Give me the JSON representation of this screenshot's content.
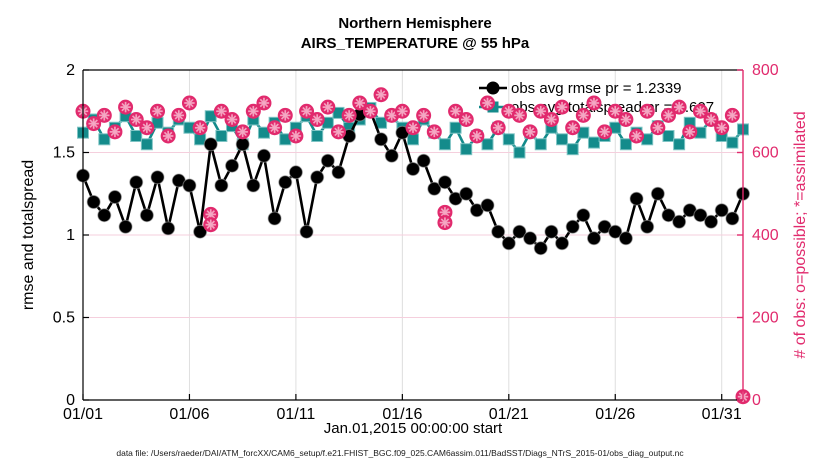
{
  "title": {
    "line1": "Northern Hemisphere",
    "line2": "AIRS_TEMPERATURE @ 55 hPa"
  },
  "footer": "data file: /Users/raeder/DAI/ATM_forcXX/CAM6_setup/f.e21.FHIST_BGC.f09_025.CAM6assim.011/BadSST/Diags_NTrS_2015-01/obs_diag_output.nc",
  "colors": {
    "rmse": "#000000",
    "totalspread": "#148b8b",
    "obs_pink": "#e12a6d",
    "obs_pink_light": "#f4a9c4",
    "grid_horizontal": "#f5cfdd",
    "grid_vertical": "#dedede"
  },
  "chart_data": {
    "type": "line",
    "title": "Northern Hemisphere AIRS_TEMPERATURE @ 55 hPa",
    "xlabel": "Jan.01,2015 00:00:00 start",
    "x_span_days": 31,
    "x_step_days": 0.5,
    "x_ticks": [
      {
        "day": 0,
        "label": "01/01"
      },
      {
        "day": 5,
        "label": "01/06"
      },
      {
        "day": 10,
        "label": "01/11"
      },
      {
        "day": 15,
        "label": "01/16"
      },
      {
        "day": 20,
        "label": "01/21"
      },
      {
        "day": 25,
        "label": "01/26"
      },
      {
        "day": 30,
        "label": "01/31"
      }
    ],
    "left_axis": {
      "label": "rmse and totalspread",
      "min": 0,
      "max": 2,
      "tick_values": [
        0,
        0.5,
        1,
        1.5,
        2
      ],
      "tick_labels": [
        "0",
        "0.5",
        "1",
        "1.5",
        "2"
      ]
    },
    "right_axis": {
      "label": "# of obs: o=possible; *=assimilated",
      "min": 0,
      "max": 800,
      "tick_values": [
        0,
        200,
        400,
        600,
        800
      ],
      "tick_labels": [
        "0",
        "200",
        "400",
        "600",
        "800"
      ],
      "color": "#e12a6d"
    },
    "grid": true,
    "legend_position": "top-right-inside",
    "series": [
      {
        "name": "rmse",
        "legend": "obs avg rmse pr = 1.2339",
        "axis": "left",
        "marker": "circle",
        "color": "#000000",
        "values": [
          1.36,
          1.2,
          1.12,
          1.23,
          1.05,
          1.32,
          1.12,
          1.35,
          1.04,
          1.33,
          1.3,
          1.02,
          1.55,
          1.3,
          1.42,
          1.55,
          1.3,
          1.48,
          1.1,
          1.32,
          1.38,
          1.02,
          1.35,
          1.45,
          1.38,
          1.6,
          1.73,
          1.75,
          1.58,
          1.48,
          1.62,
          1.4,
          1.45,
          1.28,
          1.32,
          1.22,
          1.25,
          1.15,
          1.18,
          1.02,
          0.95,
          1.02,
          0.98,
          0.92,
          1.02,
          0.95,
          1.05,
          1.12,
          0.98,
          1.05,
          1.02,
          0.98,
          1.22,
          1.05,
          1.25,
          1.12,
          1.08,
          1.15,
          1.12,
          1.08,
          1.15,
          1.1,
          1.25
        ]
      },
      {
        "name": "totalspread",
        "legend": "obs avg totalspread pr = 1.607",
        "axis": "left",
        "marker": "square",
        "color": "#148b8b",
        "values": [
          1.62,
          1.7,
          1.58,
          1.65,
          1.72,
          1.6,
          1.55,
          1.68,
          1.62,
          1.7,
          1.65,
          1.58,
          1.72,
          1.6,
          1.66,
          1.55,
          1.7,
          1.62,
          1.68,
          1.58,
          1.65,
          1.72,
          1.6,
          1.68,
          1.74,
          1.65,
          1.7,
          1.77,
          1.68,
          1.72,
          1.65,
          1.58,
          1.7,
          1.62,
          1.55,
          1.65,
          1.52,
          1.6,
          1.55,
          1.65,
          1.58,
          1.5,
          1.62,
          1.55,
          1.65,
          1.58,
          1.52,
          1.62,
          1.56,
          1.6,
          1.65,
          1.55,
          1.62,
          1.58,
          1.66,
          1.6,
          1.55,
          1.68,
          1.62,
          1.7,
          1.6,
          1.56,
          1.64
        ]
      },
      {
        "name": "possible_obs",
        "legend": null,
        "axis": "right",
        "marker": "o",
        "color": "#e12a6d",
        "values": [
          700,
          670,
          690,
          650,
          710,
          680,
          660,
          700,
          640,
          690,
          720,
          660,
          450,
          700,
          680,
          650,
          700,
          720,
          660,
          690,
          640,
          700,
          680,
          710,
          650,
          690,
          720,
          700,
          740,
          690,
          700,
          660,
          690,
          650,
          455,
          700,
          680,
          640,
          720,
          660,
          700,
          690,
          650,
          700,
          680,
          710,
          660,
          690,
          720,
          650,
          700,
          680,
          640,
          700,
          660,
          690,
          710,
          650,
          700,
          680,
          660,
          690,
          8
        ]
      },
      {
        "name": "assimilated_obs",
        "legend": null,
        "axis": "right",
        "marker": "asterisk",
        "color": "#e12a6d",
        "values": [
          688,
          655,
          678,
          638,
          698,
          668,
          648,
          688,
          628,
          678,
          708,
          648,
          425,
          688,
          668,
          638,
          688,
          708,
          648,
          678,
          628,
          688,
          668,
          698,
          638,
          678,
          708,
          688,
          728,
          678,
          688,
          648,
          678,
          638,
          430,
          688,
          668,
          628,
          708,
          648,
          688,
          678,
          638,
          688,
          668,
          698,
          648,
          678,
          708,
          638,
          688,
          668,
          628,
          688,
          648,
          678,
          698,
          638,
          688,
          668,
          648,
          678,
          5
        ]
      }
    ]
  }
}
